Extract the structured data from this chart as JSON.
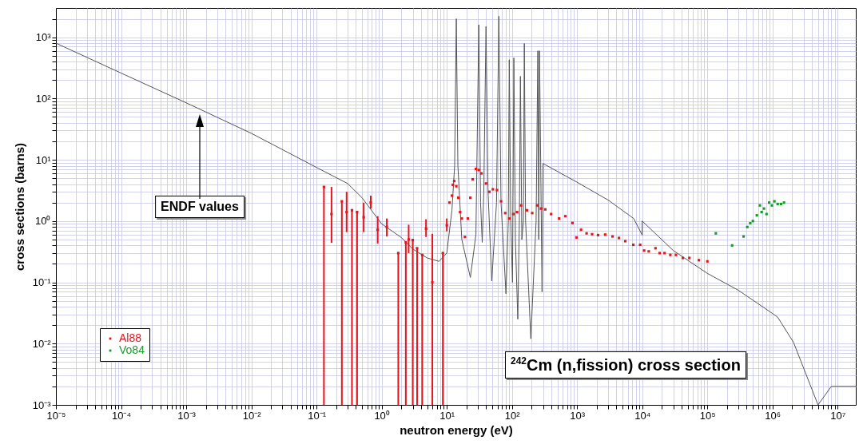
{
  "chart_data": {
    "type": "scatter",
    "title": "$^{242}$Cm (n,fission) cross section",
    "xlabel": "neutron energy (eV)",
    "ylabel": "cross sections (barns)",
    "annotations": [
      "ENDF values"
    ],
    "log": "xy",
    "grid": true,
    "legend": "bottom left",
    "marker": "square",
    "xlim": [
      1e-05,
      19000000
    ],
    "ylim": [
      0.001,
      3000
    ],
    "xticks": [
      {
        "value": 1e-05,
        "label": "10⁻⁵"
      },
      {
        "value": 2e-05,
        "label": null
      },
      {
        "value": 3e-05,
        "label": null
      },
      {
        "value": 4e-05,
        "label": null
      },
      {
        "value": 5e-05,
        "label": null
      },
      {
        "value": 6e-05,
        "label": null
      },
      {
        "value": 7e-05,
        "label": null
      },
      {
        "value": 8e-05,
        "label": null
      },
      {
        "value": 9e-05,
        "label": null
      },
      {
        "value": 0.0001,
        "label": "10⁻⁴"
      },
      {
        "value": 0.0002,
        "label": null
      },
      {
        "value": 0.0003,
        "label": null
      },
      {
        "value": 0.0004,
        "label": null
      },
      {
        "value": 0.0005,
        "label": null
      },
      {
        "value": 0.0006,
        "label": null
      },
      {
        "value": 0.0007,
        "label": null
      },
      {
        "value": 0.0008,
        "label": null
      },
      {
        "value": 0.0009,
        "label": null
      },
      {
        "value": 0.001,
        "label": "10⁻³"
      },
      {
        "value": 0.002,
        "label": null
      },
      {
        "value": 0.003,
        "label": null
      },
      {
        "value": 0.004,
        "label": null
      },
      {
        "value": 0.005,
        "label": null
      },
      {
        "value": 0.006,
        "label": null
      },
      {
        "value": 0.007,
        "label": null
      },
      {
        "value": 0.008,
        "label": null
      },
      {
        "value": 0.009,
        "label": null
      },
      {
        "value": 0.01,
        "label": "10⁻²"
      },
      {
        "value": 0.02,
        "label": null
      },
      {
        "value": 0.03,
        "label": null
      },
      {
        "value": 0.04,
        "label": null
      },
      {
        "value": 0.05,
        "label": null
      },
      {
        "value": 0.06,
        "label": null
      },
      {
        "value": 0.07,
        "label": null
      },
      {
        "value": 0.08,
        "label": null
      },
      {
        "value": 0.09,
        "label": null
      },
      {
        "value": 0.1,
        "label": "10⁻¹"
      },
      {
        "value": 0.2,
        "label": null
      },
      {
        "value": 0.3,
        "label": null
      },
      {
        "value": 0.4,
        "label": null
      },
      {
        "value": 0.5,
        "label": null
      },
      {
        "value": 0.6,
        "label": null
      },
      {
        "value": 0.7,
        "label": null
      },
      {
        "value": 0.8,
        "label": null
      },
      {
        "value": 0.9,
        "label": null
      },
      {
        "value": 1,
        "label": "10⁰"
      },
      {
        "value": 2,
        "label": null
      },
      {
        "value": 3,
        "label": null
      },
      {
        "value": 4,
        "label": null
      },
      {
        "value": 5,
        "label": null
      },
      {
        "value": 6,
        "label": null
      },
      {
        "value": 7,
        "label": null
      },
      {
        "value": 8,
        "label": null
      },
      {
        "value": 9,
        "label": null
      },
      {
        "value": 10,
        "label": "10¹"
      },
      {
        "value": 20,
        "label": null
      },
      {
        "value": 30,
        "label": null
      },
      {
        "value": 40,
        "label": null
      },
      {
        "value": 50,
        "label": null
      },
      {
        "value": 60,
        "label": null
      },
      {
        "value": 70,
        "label": null
      },
      {
        "value": 80,
        "label": null
      },
      {
        "value": 90,
        "label": null
      },
      {
        "value": 100,
        "label": "10²"
      },
      {
        "value": 200,
        "label": null
      },
      {
        "value": 300,
        "label": null
      },
      {
        "value": 400,
        "label": null
      },
      {
        "value": 500,
        "label": null
      },
      {
        "value": 600,
        "label": null
      },
      {
        "value": 700,
        "label": null
      },
      {
        "value": 800,
        "label": null
      },
      {
        "value": 900,
        "label": null
      },
      {
        "value": 1000,
        "label": "10³"
      },
      {
        "value": 2000,
        "label": null
      },
      {
        "value": 3000,
        "label": null
      },
      {
        "value": 4000,
        "label": null
      },
      {
        "value": 5000,
        "label": null
      },
      {
        "value": 6000,
        "label": null
      },
      {
        "value": 7000,
        "label": null
      },
      {
        "value": 8000,
        "label": null
      },
      {
        "value": 9000,
        "label": null
      },
      {
        "value": 10000,
        "label": "10⁴"
      },
      {
        "value": 20000,
        "label": null
      },
      {
        "value": 30000,
        "label": null
      },
      {
        "value": 40000,
        "label": null
      },
      {
        "value": 50000,
        "label": null
      },
      {
        "value": 60000,
        "label": null
      },
      {
        "value": 70000,
        "label": null
      },
      {
        "value": 80000,
        "label": null
      },
      {
        "value": 90000,
        "label": null
      },
      {
        "value": 100000,
        "label": "10⁵"
      },
      {
        "value": 200000,
        "label": null
      },
      {
        "value": 300000,
        "label": null
      },
      {
        "value": 400000,
        "label": null
      },
      {
        "value": 500000,
        "label": null
      },
      {
        "value": 600000,
        "label": null
      },
      {
        "value": 700000,
        "label": null
      },
      {
        "value": 800000,
        "label": null
      },
      {
        "value": 900000,
        "label": null
      },
      {
        "value": 1000000,
        "label": "10⁶"
      },
      {
        "value": 2000000,
        "label": null
      },
      {
        "value": 3000000,
        "label": null
      },
      {
        "value": 4000000,
        "label": null
      },
      {
        "value": 5000000,
        "label": null
      },
      {
        "value": 6000000,
        "label": null
      },
      {
        "value": 7000000,
        "label": null
      },
      {
        "value": 8000000,
        "label": null
      },
      {
        "value": 9000000,
        "label": null
      },
      {
        "value": 10000000,
        "label": "10⁷"
      }
    ],
    "yticks": [
      {
        "value": 0.001,
        "label": "10⁻³"
      },
      {
        "value": 0.002,
        "label": null
      },
      {
        "value": 0.003,
        "label": null
      },
      {
        "value": 0.004,
        "label": null
      },
      {
        "value": 0.005,
        "label": null
      },
      {
        "value": 0.006,
        "label": null
      },
      {
        "value": 0.007,
        "label": null
      },
      {
        "value": 0.008,
        "label": null
      },
      {
        "value": 0.009,
        "label": null
      },
      {
        "value": 0.01,
        "label": "10⁻²"
      },
      {
        "value": 0.02,
        "label": null
      },
      {
        "value": 0.03,
        "label": null
      },
      {
        "value": 0.04,
        "label": null
      },
      {
        "value": 0.05,
        "label": null
      },
      {
        "value": 0.06,
        "label": null
      },
      {
        "value": 0.07,
        "label": null
      },
      {
        "value": 0.08,
        "label": null
      },
      {
        "value": 0.09,
        "label": null
      },
      {
        "value": 0.1,
        "label": "10⁻¹"
      },
      {
        "value": 0.2,
        "label": null
      },
      {
        "value": 0.3,
        "label": null
      },
      {
        "value": 0.4,
        "label": null
      },
      {
        "value": 0.5,
        "label": null
      },
      {
        "value": 0.6,
        "label": null
      },
      {
        "value": 0.7,
        "label": null
      },
      {
        "value": 0.8,
        "label": null
      },
      {
        "value": 0.9,
        "label": null
      },
      {
        "value": 1,
        "label": "10⁰"
      },
      {
        "value": 2,
        "label": null
      },
      {
        "value": 3,
        "label": null
      },
      {
        "value": 4,
        "label": null
      },
      {
        "value": 5,
        "label": null
      },
      {
        "value": 6,
        "label": null
      },
      {
        "value": 7,
        "label": null
      },
      {
        "value": 8,
        "label": null
      },
      {
        "value": 9,
        "label": null
      },
      {
        "value": 10,
        "label": "10¹"
      },
      {
        "value": 20,
        "label": null
      },
      {
        "value": 30,
        "label": null
      },
      {
        "value": 40,
        "label": null
      },
      {
        "value": 50,
        "label": null
      },
      {
        "value": 60,
        "label": null
      },
      {
        "value": 70,
        "label": null
      },
      {
        "value": 80,
        "label": null
      },
      {
        "value": 90,
        "label": null
      },
      {
        "value": 100,
        "label": "10²"
      },
      {
        "value": 200,
        "label": null
      },
      {
        "value": 300,
        "label": null
      },
      {
        "value": 400,
        "label": null
      },
      {
        "value": 500,
        "label": null
      },
      {
        "value": 600,
        "label": null
      },
      {
        "value": 700,
        "label": null
      },
      {
        "value": 800,
        "label": null
      },
      {
        "value": 900,
        "label": null
      },
      {
        "value": 1000,
        "label": "10³"
      },
      {
        "value": 2000,
        "label": null
      }
    ],
    "series": [
      {
        "type": "line",
        "color": "#555555",
        "marker": "none",
        "x": [
          1e-05,
          0.0001,
          0.001,
          0.01,
          0.1,
          0.3,
          0.5,
          1,
          2,
          3,
          5,
          7.6,
          10,
          12,
          13.2,
          14,
          14.8,
          17,
          23,
          28,
          31,
          33,
          35,
          37,
          40,
          43,
          49,
          58,
          63,
          68,
          81,
          88,
          91,
          96,
          102,
          107,
          113,
          123,
          130,
          135,
          142,
          150,
          155,
          162,
          195,
          235,
          250,
          258,
          265,
          290,
          300,
          1000,
          3000,
          7400,
          10000,
          10000,
          30000,
          100000,
          300000,
          1000000,
          1200000,
          2100000,
          5000000,
          8000000,
          19000000
        ],
        "values": [
          800,
          260,
          85,
          27,
          7.5,
          4.1,
          2.4,
          0.9,
          0.54,
          0.35,
          0.25,
          0.22,
          0.3,
          1.5,
          8,
          2000,
          8,
          0.5,
          0.12,
          0.6,
          1600,
          2,
          0.45,
          3,
          1500,
          3,
          0.105,
          2,
          2200,
          2,
          0.065,
          1,
          430,
          1,
          0.1,
          460,
          0.5,
          0.025,
          1,
          230,
          0.5,
          1,
          790,
          1,
          0.012,
          1,
          600,
          0.5,
          600,
          0.07,
          8.7,
          4.3,
          2.2,
          1.1,
          0.59,
          1.0,
          0.33,
          0.14,
          0.074,
          0.031,
          0.027,
          0.0105,
          0.001,
          0.002,
          0.002
        ]
      },
      {
        "name": "Al88",
        "color": "#e8141b",
        "x": [
          0.13,
          0.17,
          0.245,
          0.29,
          0.35,
          0.42,
          0.53,
          0.68,
          0.87,
          1.2,
          1.8,
          2.35,
          2.6,
          3.0,
          3.5,
          4.2,
          4.8,
          6.0,
          8.7,
          10,
          11,
          12,
          12.4,
          13,
          14,
          15,
          16,
          17,
          19,
          21,
          23,
          25,
          28,
          31,
          34,
          40,
          45,
          51,
          59,
          68,
          79,
          91,
          105,
          120,
          138,
          170,
          205,
          245,
          280,
          325,
          400,
          530,
          660,
          850,
          980,
          1150,
          1400,
          1700,
          2100,
          2700,
          3500,
          4400,
          5500,
          7300,
          9300,
          10700,
          12600,
          16000,
          18500,
          22000,
          27000,
          33000,
          42000,
          53000,
          74000,
          100000
        ],
        "values": [
          3.6,
          1.3,
          2.1,
          1.4,
          1.5,
          1.4,
          1.15,
          2.0,
          0.72,
          0.8,
          0.3,
          0.45,
          0.5,
          0.49,
          0.36,
          0.28,
          0.75,
          0.1,
          0.3,
          0.85,
          2.0,
          2.6,
          3.9,
          4.5,
          3.7,
          2.4,
          1.4,
          1.1,
          0.55,
          1.1,
          2.4,
          4.8,
          7.1,
          6.8,
          6.0,
          4.1,
          3.0,
          3.3,
          3.2,
          2.1,
          1.35,
          1.1,
          1.3,
          1.4,
          1.8,
          1.5,
          1.35,
          1.8,
          1.6,
          1.55,
          1.3,
          1.1,
          1.2,
          0.93,
          0.54,
          0.72,
          0.63,
          0.61,
          0.59,
          0.6,
          0.56,
          0.53,
          0.47,
          0.41,
          0.41,
          0.33,
          0.32,
          0.36,
          0.3,
          0.3,
          0.28,
          0.28,
          0.25,
          0.25,
          0.23,
          0.22
        ],
        "errors": [
          [
            0.001,
            3.6
          ],
          [
            0.44,
            3.6
          ],
          [
            0.001,
            2.1
          ],
          [
            0.66,
            3.0
          ],
          [
            0.001,
            1.5
          ],
          [
            0.001,
            1.4
          ],
          [
            0.66,
            2.0
          ],
          [
            1.6,
            2.6
          ],
          [
            0.43,
            1.2
          ],
          [
            0.56,
            1.1
          ],
          [
            0.001,
            0.3
          ],
          [
            0.001,
            0.45
          ],
          [
            0.3,
            0.87
          ],
          [
            0.001,
            0.49
          ],
          [
            0.001,
            0.36
          ],
          [
            0.001,
            0.28
          ],
          [
            0.55,
            1.07
          ],
          [
            0.001,
            0.62
          ],
          [
            0.001,
            0.3
          ],
          [
            0.68,
            1.1
          ],
          null,
          null,
          null,
          null,
          null,
          null,
          null,
          null,
          null,
          null,
          null,
          null,
          null,
          null,
          null,
          null,
          null,
          null,
          null,
          null,
          null,
          null,
          null,
          null,
          null,
          null,
          null,
          null,
          null,
          null,
          null,
          null,
          null,
          null,
          null,
          null,
          null,
          null,
          null,
          null,
          null,
          null,
          null,
          null,
          null,
          null,
          null,
          null,
          null,
          null,
          null,
          null,
          null,
          null,
          null,
          null
        ]
      },
      {
        "name": "Vo84",
        "color": "#1a9a2a",
        "x": [
          135000,
          240000,
          360000,
          410000,
          455000,
          500000,
          575000,
          640000,
          680000,
          740000,
          810000,
          890000,
          980000,
          1070000,
          1200000,
          1350000,
          1500000
        ],
        "values": [
          0.63,
          0.4,
          0.56,
          0.8,
          0.92,
          1.0,
          1.24,
          1.8,
          1.4,
          1.6,
          1.3,
          2.0,
          1.8,
          2.1,
          1.9,
          1.9,
          2.0
        ]
      }
    ]
  }
}
